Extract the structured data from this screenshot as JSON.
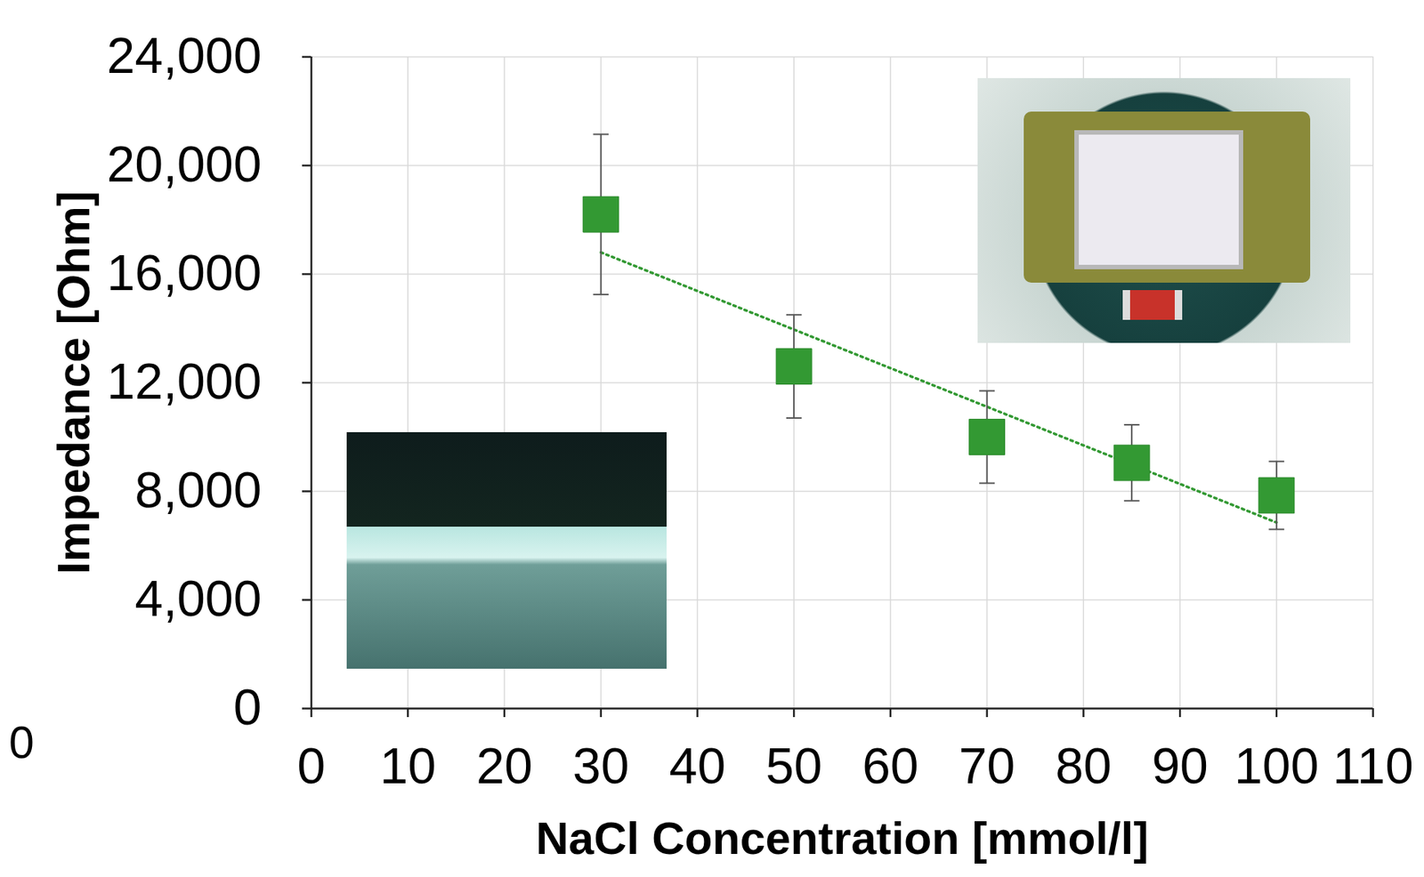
{
  "chart_data": {
    "type": "scatter",
    "x_label": "NaCl Concentration [mmol/l]",
    "y_label": "Impedance [Ohm]",
    "x": [
      30,
      50,
      70,
      85,
      100
    ],
    "values": [
      18200,
      12600,
      10000,
      9050,
      7850
    ],
    "errors": [
      2950,
      1900,
      1700,
      1400,
      1250
    ],
    "color": "#339933",
    "marker": "square",
    "trendline": {
      "x": [
        30,
        100
      ],
      "values": [
        16800,
        6850
      ],
      "line_style": "dotted"
    },
    "xlim": [
      0,
      110
    ],
    "xticks": [
      0,
      10,
      20,
      30,
      40,
      50,
      60,
      70,
      80,
      90,
      100,
      110
    ],
    "ylim": [
      0,
      24000
    ],
    "yticks": [
      0,
      4000,
      8000,
      12000,
      16000,
      20000,
      24000
    ],
    "grid": true,
    "annotations": [
      "0"
    ]
  }
}
